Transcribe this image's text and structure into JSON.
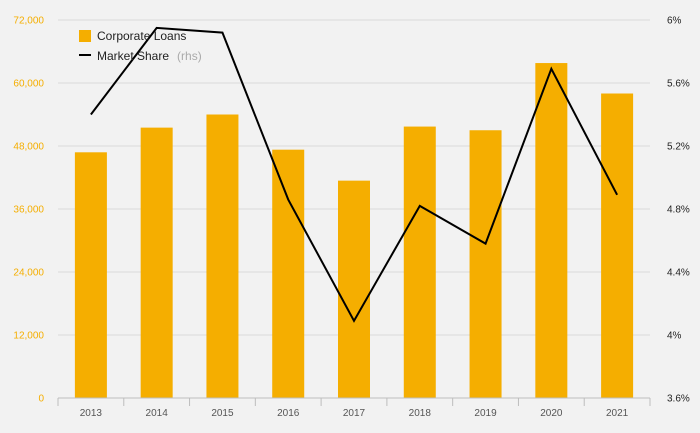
{
  "chart_data": {
    "type": "bar",
    "categories": [
      "2013",
      "2014",
      "2015",
      "2016",
      "2017",
      "2018",
      "2019",
      "2020",
      "2021"
    ],
    "series": [
      {
        "name": "Corporate Loans",
        "type": "bar",
        "axis": "left",
        "color": "#f5ae00",
        "values": [
          46800,
          51500,
          54000,
          47300,
          41400,
          51700,
          51000,
          63800,
          58000
        ]
      },
      {
        "name": "Market Share",
        "name_suffix": "(rhs)",
        "type": "line",
        "axis": "right",
        "color": "#000000",
        "values": [
          5.4,
          5.95,
          5.92,
          4.86,
          4.09,
          4.82,
          4.58,
          5.69,
          4.89
        ]
      }
    ],
    "y_left": {
      "lim": [
        0,
        72000
      ],
      "ticks": [
        0,
        12000,
        24000,
        36000,
        48000,
        60000,
        72000
      ],
      "tick_labels": [
        "0",
        "12,000",
        "24,000",
        "36,000",
        "48,000",
        "60,000",
        "72,000"
      ],
      "color": "#f5ae00"
    },
    "y_right": {
      "lim": [
        3.6,
        6.0
      ],
      "ticks": [
        3.6,
        4.0,
        4.4,
        4.8,
        5.2,
        5.6,
        6.0
      ],
      "tick_labels": [
        "3.6%",
        "4%",
        "4.4%",
        "4.8%",
        "5.2%",
        "5.6%",
        "6%"
      ]
    },
    "grid": true,
    "legend_position": "top-left"
  }
}
